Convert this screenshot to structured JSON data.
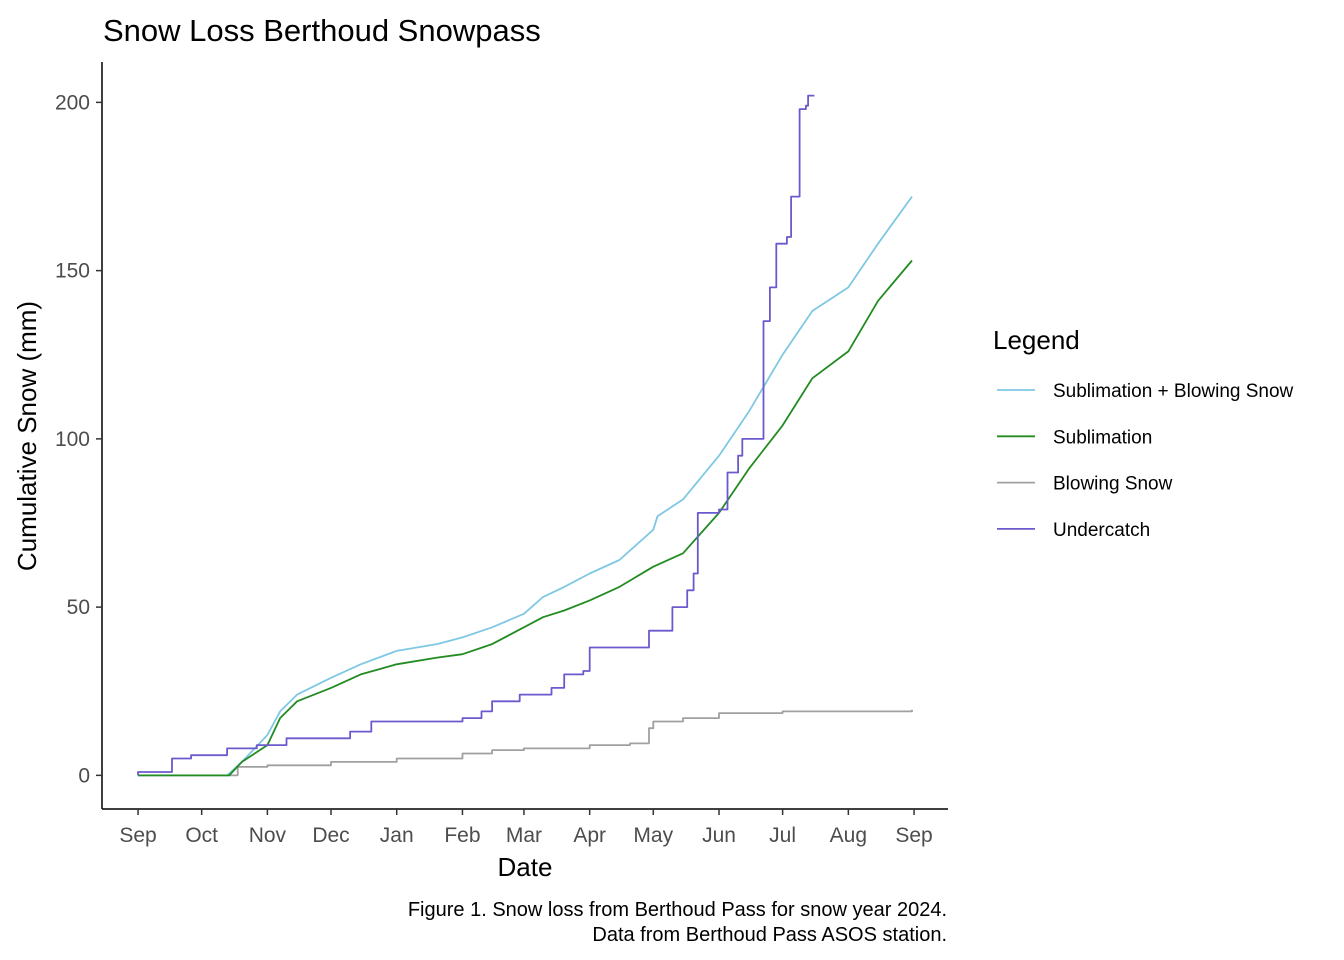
{
  "chart_data": {
    "type": "line",
    "title": "Snow Loss Berthoud Snowpass",
    "xlabel": "Date",
    "ylabel": "Cumulative Snow (mm)",
    "x_ticks": [
      "Sep",
      "Oct",
      "Nov",
      "Dec",
      "Jan",
      "Feb",
      "Mar",
      "Apr",
      "May",
      "Jun",
      "Jul",
      "Aug",
      "Sep"
    ],
    "xlim": [
      "2023-08-15",
      "2024-09-17"
    ],
    "ylim": [
      -10,
      212
    ],
    "y_ticks": [
      0,
      50,
      100,
      150,
      200
    ],
    "grid": false,
    "legend": {
      "title": "Legend",
      "position": "right",
      "entries": [
        "Sublimation + Blowing Snow",
        "Sublimation",
        "Blowing Snow",
        "Undercatch"
      ]
    },
    "caption": [
      "Figure 1. Snow loss from Berthoud Pass for snow year 2024.",
      "Data from Berthoud Pass ASOS station."
    ],
    "series": [
      {
        "name": "Sublimation + Blowing Snow",
        "color": "#7ec8e3",
        "step": false,
        "points": [
          [
            "2023-09-01",
            0
          ],
          [
            "2023-10-13",
            0
          ],
          [
            "2023-10-20",
            4
          ],
          [
            "2023-11-01",
            12
          ],
          [
            "2023-11-07",
            19
          ],
          [
            "2023-11-15",
            24
          ],
          [
            "2023-12-01",
            29
          ],
          [
            "2023-12-15",
            33
          ],
          [
            "2024-01-01",
            37
          ],
          [
            "2024-01-20",
            39
          ],
          [
            "2024-02-01",
            41
          ],
          [
            "2024-02-15",
            44
          ],
          [
            "2024-03-01",
            48
          ],
          [
            "2024-03-10",
            53
          ],
          [
            "2024-03-20",
            56
          ],
          [
            "2024-04-01",
            60
          ],
          [
            "2024-04-15",
            64
          ],
          [
            "2024-05-01",
            73
          ],
          [
            "2024-05-03",
            77
          ],
          [
            "2024-05-15",
            82
          ],
          [
            "2024-06-01",
            95
          ],
          [
            "2024-06-15",
            108
          ],
          [
            "2024-07-01",
            125
          ],
          [
            "2024-07-15",
            138
          ],
          [
            "2024-08-01",
            145
          ],
          [
            "2024-08-15",
            158
          ],
          [
            "2024-08-31",
            172
          ]
        ]
      },
      {
        "name": "Sublimation",
        "color": "#228b22",
        "step": false,
        "points": [
          [
            "2023-09-01",
            0
          ],
          [
            "2023-10-14",
            0
          ],
          [
            "2023-10-20",
            4
          ],
          [
            "2023-11-01",
            9
          ],
          [
            "2023-11-07",
            17
          ],
          [
            "2023-11-15",
            22
          ],
          [
            "2023-12-01",
            26
          ],
          [
            "2023-12-15",
            30
          ],
          [
            "2024-01-01",
            33
          ],
          [
            "2024-01-20",
            35
          ],
          [
            "2024-02-01",
            36
          ],
          [
            "2024-02-15",
            39
          ],
          [
            "2024-03-01",
            44
          ],
          [
            "2024-03-10",
            47
          ],
          [
            "2024-03-20",
            49
          ],
          [
            "2024-04-01",
            52
          ],
          [
            "2024-04-15",
            56
          ],
          [
            "2024-05-01",
            62
          ],
          [
            "2024-05-15",
            66
          ],
          [
            "2024-06-01",
            78
          ],
          [
            "2024-06-15",
            91
          ],
          [
            "2024-07-01",
            104
          ],
          [
            "2024-07-15",
            118
          ],
          [
            "2024-08-01",
            126
          ],
          [
            "2024-08-15",
            141
          ],
          [
            "2024-08-31",
            153
          ]
        ]
      },
      {
        "name": "Blowing Snow",
        "color": "#a0a0a0",
        "step": true,
        "points": [
          [
            "2023-09-01",
            0
          ],
          [
            "2023-10-14",
            0
          ],
          [
            "2023-10-18",
            2.5
          ],
          [
            "2023-11-01",
            3
          ],
          [
            "2023-12-01",
            4
          ],
          [
            "2024-01-01",
            5
          ],
          [
            "2024-02-01",
            6.5
          ],
          [
            "2024-02-15",
            7.5
          ],
          [
            "2024-03-01",
            8
          ],
          [
            "2024-04-01",
            9
          ],
          [
            "2024-04-20",
            9.5
          ],
          [
            "2024-04-29",
            14
          ],
          [
            "2024-05-01",
            16
          ],
          [
            "2024-05-15",
            17
          ],
          [
            "2024-06-01",
            18.5
          ],
          [
            "2024-07-01",
            19
          ],
          [
            "2024-08-31",
            19.5
          ]
        ]
      },
      {
        "name": "Undercatch",
        "color": "#6a5acd",
        "step": true,
        "points": [
          [
            "2023-09-01",
            0
          ],
          [
            "2023-09-01",
            1
          ],
          [
            "2023-09-16",
            1
          ],
          [
            "2023-09-17",
            5
          ],
          [
            "2023-09-26",
            6
          ],
          [
            "2023-10-13",
            8
          ],
          [
            "2023-10-25",
            8
          ],
          [
            "2023-10-27",
            9
          ],
          [
            "2023-11-10",
            11
          ],
          [
            "2023-12-01",
            11
          ],
          [
            "2023-12-10",
            13
          ],
          [
            "2023-12-20",
            16
          ],
          [
            "2024-01-01",
            16
          ],
          [
            "2024-01-20",
            16
          ],
          [
            "2024-02-01",
            17
          ],
          [
            "2024-02-10",
            19
          ],
          [
            "2024-02-15",
            22
          ],
          [
            "2024-02-28",
            24
          ],
          [
            "2024-03-01",
            24
          ],
          [
            "2024-03-14",
            26
          ],
          [
            "2024-03-20",
            30
          ],
          [
            "2024-03-29",
            31
          ],
          [
            "2024-04-01",
            38
          ],
          [
            "2024-04-28",
            38
          ],
          [
            "2024-04-29",
            43
          ],
          [
            "2024-05-08",
            43
          ],
          [
            "2024-05-10",
            50
          ],
          [
            "2024-05-15",
            50
          ],
          [
            "2024-05-17",
            55
          ],
          [
            "2024-05-20",
            60
          ],
          [
            "2024-05-22",
            78
          ],
          [
            "2024-05-29",
            78
          ],
          [
            "2024-06-01",
            79
          ],
          [
            "2024-06-05",
            90
          ],
          [
            "2024-06-10",
            95
          ],
          [
            "2024-06-12",
            100
          ],
          [
            "2024-06-20",
            100
          ],
          [
            "2024-06-22",
            135
          ],
          [
            "2024-06-25",
            145
          ],
          [
            "2024-06-28",
            158
          ],
          [
            "2024-07-03",
            160
          ],
          [
            "2024-07-05",
            172
          ],
          [
            "2024-07-08",
            172
          ],
          [
            "2024-07-09",
            198
          ],
          [
            "2024-07-12",
            199
          ],
          [
            "2024-07-13",
            202
          ],
          [
            "2024-07-16",
            202
          ]
        ]
      }
    ]
  }
}
